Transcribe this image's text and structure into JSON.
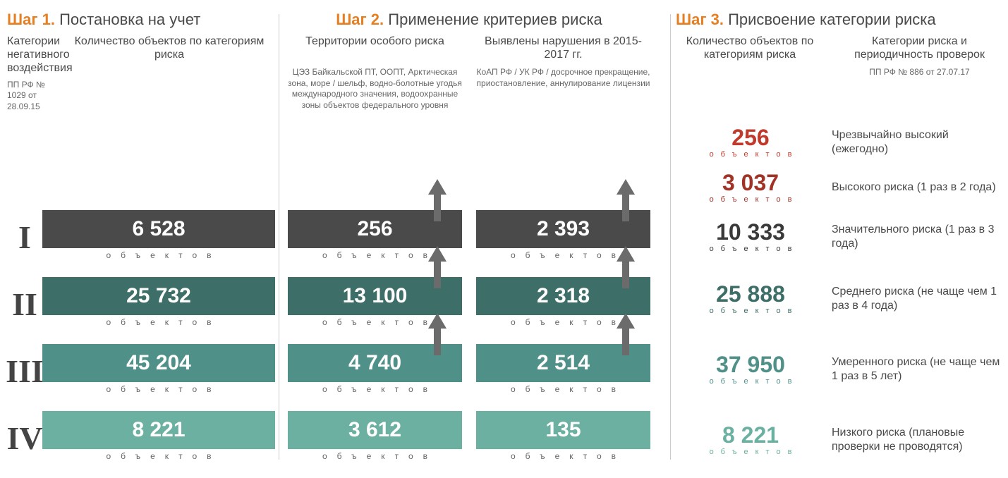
{
  "colors": {
    "orange": "#e67e22",
    "text": "#4a4a4a",
    "rows": [
      "#4a4a4a",
      "#3e6e68",
      "#4f9089",
      "#6bb0a0"
    ],
    "arrow": "#6b6b6b",
    "s3": [
      "#c0392b",
      "#a03226",
      "#3a3a3a",
      "#3e6e68",
      "#4f9089",
      "#6bb0a0"
    ]
  },
  "layout": {
    "s3_row_heights": [
      64,
      64,
      76,
      100,
      100,
      100
    ]
  },
  "step1": {
    "title_prefix": "Шаг 1.",
    "title": "Постановка на учет",
    "col1_head": "Категории негативного воздействия",
    "col1_note": "ПП РФ № 1029 от 28.09.15",
    "col2_head": "Количество объектов по категориям риска",
    "unit": "объектов",
    "rows": [
      {
        "roman": "I",
        "value": "6 528"
      },
      {
        "roman": "II",
        "value": "25 732"
      },
      {
        "roman": "III",
        "value": "45 204"
      },
      {
        "roman": "IV",
        "value": "8 221"
      }
    ]
  },
  "step2": {
    "title_prefix": "Шаг 2.",
    "title": "Применение критериев риска",
    "colA_head": "Территории особого риска",
    "colA_note": "ЦЭЗ Байкальской ПТ, ООПТ, Арктическая зона, море / шельф, водно-болотные угодья международного значения, водоохранные зоны объектов федерального уровня",
    "colB_head": "Выявлены нарушения в 2015-2017 гг.",
    "colB_note": "КоАП РФ / УК РФ / досрочное прекращение, приостановление, аннулирование лицензии",
    "unit": "объектов",
    "colA_values": [
      "256",
      "13 100",
      "4 740",
      "3 612"
    ],
    "colB_values": [
      "2 393",
      "2 318",
      "2 514",
      "135"
    ]
  },
  "step3": {
    "title_prefix": "Шаг 3.",
    "title": "Присвоение категории риска",
    "col1_head": "Количество объектов по категориям риска",
    "col2_head": "Категории риска и периодичность проверок",
    "col2_note": "ПП РФ № 886 от 27.07.17",
    "unit": "объектов",
    "items": [
      {
        "value": "256",
        "cat": "Чрезвычайно высокий (ежегодно)"
      },
      {
        "value": "3 037",
        "cat": "Высокого риска (1 раз в 2 года)"
      },
      {
        "value": "10 333",
        "cat": "Значительного риска (1 раз в 3 года)"
      },
      {
        "value": "25 888",
        "cat": "Среднего риска (не чаще чем 1 раз в 4 года)"
      },
      {
        "value": "37 950",
        "cat": "Умеренного риска (не чаще чем 1 раз в 5 лет)"
      },
      {
        "value": "8 221",
        "cat": "Низкого риска (плановые проверки не проводятся)"
      }
    ]
  }
}
